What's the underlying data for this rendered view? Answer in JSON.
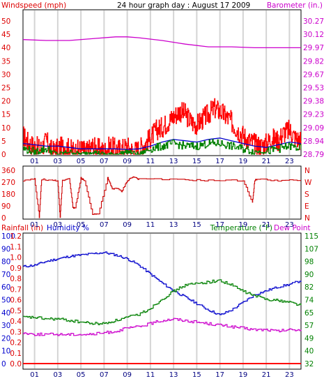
{
  "chart_data": [
    {
      "type": "line",
      "title": "24 hour graph day : August 17 2009",
      "left_label": "Windspeed (mph)",
      "right_label": "Barometer (in.)",
      "y_left_ticks": [
        "50",
        "45",
        "40",
        "35",
        "30",
        "25",
        "20",
        "15",
        "10",
        "5",
        "0"
      ],
      "y_right_ticks": [
        "30.27",
        "30.12",
        "29.97",
        "29.82",
        "29.67",
        "29.53",
        "29.38",
        "29.23",
        "29.09",
        "28.94",
        "28.79"
      ],
      "x_ticks": [
        "01",
        "03",
        "05",
        "07",
        "09",
        "11",
        "13",
        "15",
        "17",
        "19",
        "21",
        "23"
      ],
      "ylim_left": [
        0,
        50
      ],
      "ylim_right": [
        28.79,
        30.27
      ],
      "series": [
        {
          "name": "Windspeed (mph)",
          "color": "#ff0000",
          "style": "step",
          "hours": [
            0,
            0.5,
            1,
            1.5,
            2,
            2.5,
            3,
            3.5,
            4,
            4.5,
            5,
            5.5,
            6,
            6.5,
            7,
            7.5,
            8,
            8.5,
            9,
            9.5,
            10,
            10.5,
            11,
            11.5,
            12,
            12.5,
            13,
            13.5,
            14,
            14.5,
            15,
            15.5,
            16,
            16.5,
            17,
            17.5,
            18,
            18.5,
            19,
            19.5,
            20,
            20.5,
            21,
            21.5,
            22,
            22.5,
            23,
            23.5,
            24
          ],
          "values": [
            7,
            4,
            3,
            2,
            5,
            1,
            2,
            3,
            2,
            1,
            2,
            1,
            3,
            2,
            1,
            3,
            2,
            2,
            3,
            1,
            2,
            4,
            6,
            9,
            10,
            12,
            14,
            16,
            15,
            12,
            11,
            13,
            15,
            17,
            16,
            14,
            12,
            9,
            7,
            5,
            4,
            3,
            4,
            6,
            5,
            8,
            9,
            6,
            5
          ]
        },
        {
          "name": "Windspeed average",
          "color": "#0000cc",
          "style": "line",
          "hours": [
            0,
            1,
            2,
            3,
            4,
            5,
            6,
            7,
            8,
            9,
            10,
            11,
            12,
            13,
            14,
            15,
            16,
            17,
            18,
            19,
            20,
            21,
            22,
            23,
            24
          ],
          "values": [
            4,
            3.5,
            3,
            3,
            2.5,
            2,
            2,
            2,
            2,
            1.8,
            2,
            3,
            4.5,
            5.5,
            5,
            4.5,
            5.5,
            6,
            5,
            4,
            3,
            2.5,
            3.5,
            4.5,
            4
          ]
        },
        {
          "name": "Windspeed gust low",
          "color": "#008000",
          "style": "step",
          "hours": [
            0,
            1,
            2,
            3,
            4,
            5,
            6,
            7,
            8,
            9,
            10,
            11,
            12,
            13,
            14,
            15,
            16,
            17,
            18,
            19,
            20,
            21,
            22,
            23,
            24
          ],
          "values": [
            2,
            1,
            2,
            0,
            1,
            0,
            1,
            0,
            0,
            1,
            0,
            2,
            3,
            4,
            3,
            3,
            4,
            4,
            3,
            2,
            1,
            1,
            2,
            3,
            2
          ]
        },
        {
          "name": "Barometer (in.)",
          "color": "#cc00cc",
          "style": "line",
          "hours": [
            0,
            2,
            4,
            6,
            8,
            9,
            10,
            12,
            14,
            16,
            18,
            20,
            22,
            24
          ],
          "values": [
            30.05,
            30.04,
            30.04,
            30.06,
            30.08,
            30.08,
            30.07,
            30.04,
            30.0,
            29.97,
            29.97,
            29.96,
            29.96,
            29.96
          ]
        }
      ]
    },
    {
      "type": "line",
      "title": "",
      "y_left_ticks": [
        "360",
        "270",
        "180",
        "90",
        "0"
      ],
      "y_right_ticks": [
        "N",
        "W",
        "S",
        "E",
        "N"
      ],
      "x_ticks": [
        "01",
        "03",
        "05",
        "07",
        "09",
        "11",
        "13",
        "15",
        "17",
        "19",
        "21",
        "23"
      ],
      "ylim_left": [
        0,
        360
      ],
      "series": [
        {
          "name": "Wind direction",
          "color": "#cc0000",
          "style": "step",
          "hours": [
            0,
            1,
            1.4,
            1.6,
            2.5,
            3.0,
            3.2,
            3.4,
            4.0,
            4.3,
            4.5,
            5.0,
            5.3,
            6.0,
            6.5,
            7.3,
            7.7,
            8.1,
            8.5,
            9.0,
            9.5,
            10,
            14,
            16,
            19,
            19.8,
            20.0,
            20.2,
            22,
            24
          ],
          "values": [
            300,
            310,
            0,
            310,
            300,
            300,
            0,
            300,
            320,
            80,
            80,
            320,
            300,
            30,
            30,
            320,
            230,
            240,
            210,
            300,
            330,
            310,
            305,
            300,
            300,
            120,
            300,
            310,
            300,
            300
          ]
        }
      ]
    },
    {
      "type": "line",
      "title": "",
      "left_label": "Rainfall (in)",
      "mid_label": "Humidity %",
      "right_label": "Temperature (°F)",
      "right_label2": "Dew Point",
      "y_left_ticks": [
        "100",
        "90",
        "80",
        "70",
        "60",
        "50",
        "40",
        "30",
        "20",
        "10",
        "0"
      ],
      "y_left2_ticks": [
        "1.2",
        "1.1",
        "1.0",
        "0.9",
        "0.8",
        "0.7",
        "0.6",
        "0.5",
        "0.4",
        "0.3",
        "0.2",
        "0.1",
        "0.0"
      ],
      "y_right_ticks": [
        "115",
        "107",
        "98",
        "90",
        "82",
        "74",
        "65",
        "57",
        "49",
        "40",
        "32"
      ],
      "x_ticks": [
        "01",
        "03",
        "05",
        "07",
        "09",
        "11",
        "13",
        "15",
        "17",
        "19",
        "21",
        "23"
      ],
      "ylim_left": [
        0,
        100
      ],
      "ylim_right": [
        32,
        115
      ],
      "series": [
        {
          "name": "Humidity %",
          "color": "#0000cc",
          "style": "line",
          "hours": [
            0,
            1,
            2,
            3,
            4,
            5,
            6,
            7,
            8,
            9,
            10,
            11,
            12,
            13,
            14,
            15,
            16,
            17,
            18,
            19,
            20,
            21,
            22,
            23,
            24
          ],
          "values": [
            76,
            77,
            80,
            82,
            84,
            85,
            86,
            87,
            85,
            82,
            77,
            70,
            63,
            57,
            52,
            47,
            42,
            38,
            42,
            48,
            54,
            57,
            60,
            62,
            65
          ]
        },
        {
          "name": "Temperature (°F)",
          "color": "#008000",
          "style": "line",
          "hours": [
            0,
            1,
            2,
            3,
            4,
            5,
            6,
            7,
            8,
            9,
            10,
            11,
            12,
            13,
            14,
            15,
            16,
            17,
            18,
            19,
            20,
            21,
            22,
            23,
            24
          ],
          "values": [
            62,
            62,
            61,
            61,
            60,
            59,
            58,
            58,
            60,
            62,
            64,
            68,
            74,
            79,
            83,
            84,
            85,
            86,
            83,
            79,
            76,
            74,
            73,
            72,
            70
          ]
        },
        {
          "name": "Dew Point",
          "color": "#cc00cc",
          "style": "line",
          "hours": [
            0,
            1,
            2,
            3,
            4,
            5,
            6,
            7,
            8,
            9,
            10,
            11,
            12,
            13,
            14,
            15,
            16,
            17,
            18,
            19,
            20,
            21,
            22,
            23,
            24
          ],
          "values": [
            52,
            51,
            51,
            51,
            51,
            51,
            51,
            52,
            53,
            55,
            56,
            58,
            60,
            61,
            60,
            59,
            58,
            57,
            56,
            55,
            54,
            54,
            53,
            54,
            54
          ]
        },
        {
          "name": "Rainfall (in)",
          "color": "#ff0000",
          "style": "line",
          "hours": [
            0,
            24
          ],
          "values": [
            0,
            0
          ]
        }
      ]
    }
  ]
}
